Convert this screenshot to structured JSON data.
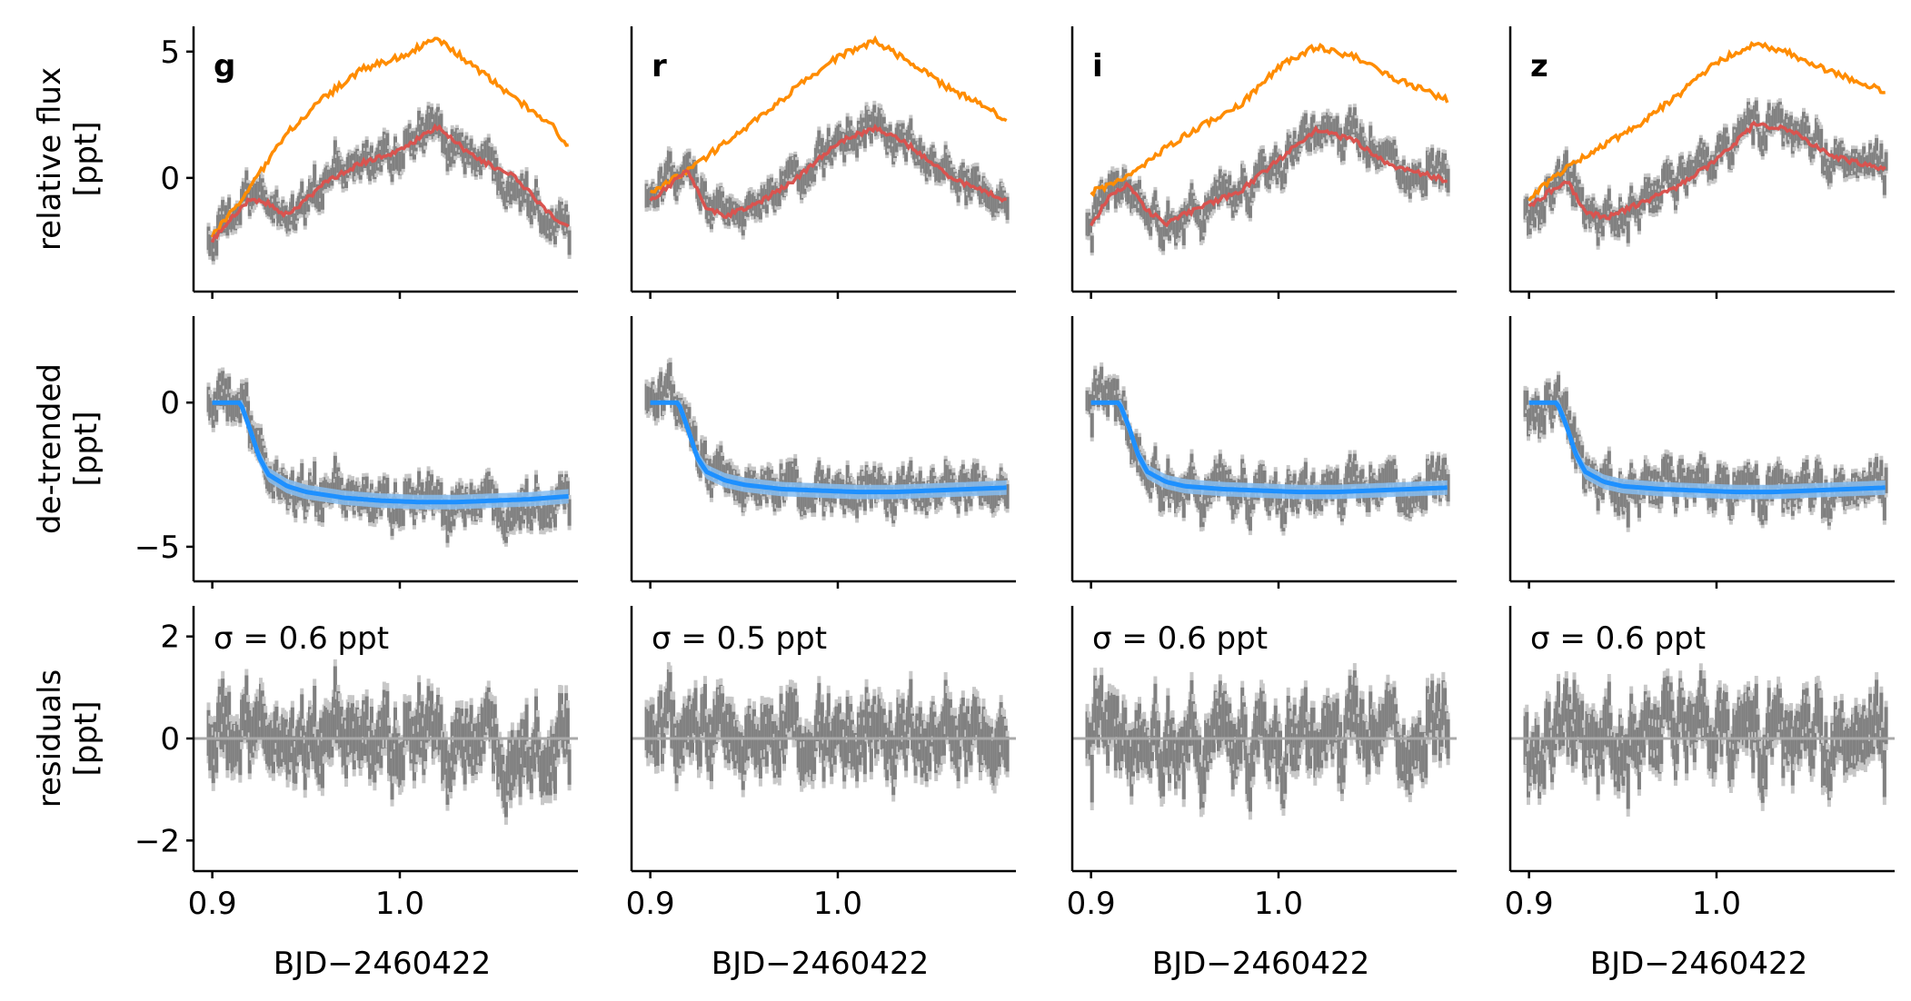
{
  "chart_data": {
    "type": "line",
    "title": "",
    "bands": [
      "g",
      "r",
      "i",
      "z"
    ],
    "x_axis": {
      "label": "BJD−2460422",
      "range": [
        0.89,
        1.095
      ],
      "ticks": [
        0.9,
        1.0
      ],
      "tick_labels": [
        "0.9",
        "1.0"
      ]
    },
    "rows": [
      {
        "id": "raw",
        "ylabel_lines": [
          "relative flux",
          "[ppt]"
        ],
        "ylim": [
          -4.5,
          6.0
        ],
        "ticks": [
          0,
          5
        ],
        "tick_labels": [
          "0",
          "5"
        ]
      },
      {
        "id": "detrended",
        "ylabel_lines": [
          "de-trended",
          "[ppt]"
        ],
        "ylim": [
          -6.2,
          3.0
        ],
        "ticks": [
          -5,
          0
        ],
        "tick_labels": [
          "−5",
          "0"
        ]
      },
      {
        "id": "residuals",
        "ylabel_lines": [
          "residuals",
          "[ppt]"
        ],
        "ylim": [
          -2.6,
          2.6
        ],
        "ticks": [
          -2,
          0,
          2
        ],
        "tick_labels": [
          "−2",
          "0",
          "2"
        ]
      }
    ],
    "colors": {
      "data": "#808080",
      "errorbar": "#c8c8c8",
      "systematics_model": "#ff8c00",
      "full_model": "#d9534f",
      "transit_model": "#1e90ff",
      "transit_band": "#87bdf0",
      "zero_line": "#a9a9a9"
    },
    "series": {
      "systematics_model": {
        "x": [
          0.9,
          0.92,
          0.94,
          0.96,
          0.98,
          1.0,
          1.02,
          1.04,
          1.06,
          1.08,
          1.09
        ],
        "g": [
          -2.3,
          -0.4,
          1.8,
          3.2,
          4.3,
          4.8,
          5.5,
          4.4,
          3.2,
          2.2,
          1.2
        ],
        "r": [
          -0.6,
          0.3,
          1.4,
          2.5,
          3.7,
          4.8,
          5.4,
          4.5,
          3.5,
          2.8,
          2.2
        ],
        "i": [
          -0.6,
          0.1,
          1.2,
          2.1,
          2.9,
          4.4,
          5.2,
          4.8,
          4.0,
          3.4,
          3.1
        ],
        "z": [
          -0.8,
          0.4,
          1.3,
          2.2,
          3.3,
          4.6,
          5.3,
          4.9,
          4.2,
          3.7,
          3.4
        ]
      },
      "full_model": {
        "x": [
          0.9,
          0.91,
          0.92,
          0.93,
          0.94,
          0.96,
          0.98,
          1.0,
          1.02,
          1.04,
          1.06,
          1.08,
          1.09
        ],
        "g": [
          -2.5,
          -1.6,
          -0.8,
          -1.0,
          -1.5,
          -0.2,
          0.6,
          1.1,
          2.0,
          0.8,
          0.1,
          -1.4,
          -2.0
        ],
        "r": [
          -0.9,
          -0.3,
          0.3,
          -1.2,
          -1.5,
          -0.9,
          0.1,
          1.4,
          2.0,
          1.2,
          0.0,
          -0.6,
          -0.9
        ],
        "i": [
          -1.9,
          -0.7,
          -0.2,
          -1.3,
          -1.8,
          -1.1,
          -0.5,
          0.7,
          1.9,
          1.5,
          0.5,
          0.1,
          -0.1
        ],
        "z": [
          -1.2,
          -0.6,
          -0.1,
          -1.3,
          -1.6,
          -1.0,
          -0.3,
          0.7,
          2.1,
          1.9,
          0.9,
          0.5,
          0.4
        ]
      },
      "transit_model": {
        "x": [
          0.9,
          0.91,
          0.915,
          0.92,
          0.925,
          0.93,
          0.94,
          0.95,
          0.97,
          0.99,
          1.01,
          1.03,
          1.05,
          1.07,
          1.09
        ],
        "g": [
          0.0,
          0.0,
          0.0,
          -0.9,
          -1.9,
          -2.5,
          -2.9,
          -3.1,
          -3.3,
          -3.4,
          -3.45,
          -3.45,
          -3.4,
          -3.35,
          -3.25
        ],
        "r": [
          0.0,
          0.0,
          0.0,
          -0.9,
          -1.9,
          -2.4,
          -2.7,
          -2.85,
          -3.0,
          -3.05,
          -3.1,
          -3.1,
          -3.05,
          -3.0,
          -2.95
        ],
        "i": [
          0.0,
          0.0,
          0.0,
          -0.8,
          -1.8,
          -2.4,
          -2.75,
          -2.9,
          -3.0,
          -3.05,
          -3.1,
          -3.1,
          -3.05,
          -3.0,
          -2.95
        ],
        "z": [
          0.0,
          0.0,
          0.0,
          -0.8,
          -1.8,
          -2.4,
          -2.75,
          -2.9,
          -3.0,
          -3.05,
          -3.1,
          -3.1,
          -3.05,
          -3.0,
          -2.95
        ]
      },
      "transit_band_halfwidth": 0.25,
      "data_noise_ppt": {
        "g": 0.6,
        "r": 0.5,
        "i": 0.6,
        "z": 0.6
      }
    },
    "residual_labels": {
      "g": "σ = 0.6 ppt",
      "r": "σ = 0.5 ppt",
      "i": "σ = 0.6 ppt",
      "z": "σ = 0.6 ppt"
    }
  }
}
